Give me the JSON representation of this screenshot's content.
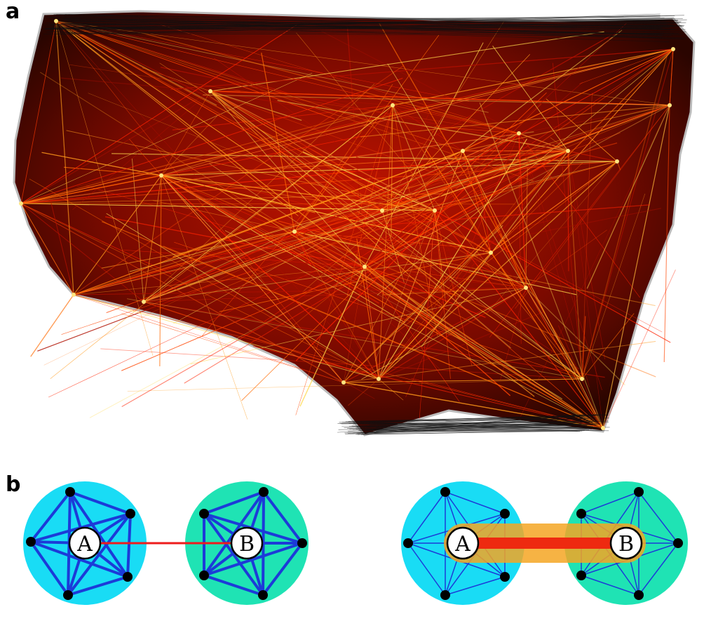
{
  "figure": {
    "panel_a_label": "a",
    "panel_b_label": "b"
  },
  "diagram": {
    "left": {
      "node_a": "A",
      "node_b": "B"
    },
    "right": {
      "node_a": "A",
      "node_b": "B"
    }
  },
  "colors": {
    "background": "#ffffff",
    "map_dark_edges": "#1a0500",
    "map_hot_red": "#ff2200",
    "map_hot_orange": "#ff7a00",
    "map_hot_yellow": "#ffd84a",
    "community_a_fill": "#19dcf5",
    "community_b_fill": "#1fe3b4",
    "intra_edges": "#1c3bd8",
    "bridge_edge": "#ee1c1c",
    "bridge_highlight": "#f5a623",
    "node_dots": "#000000"
  }
}
